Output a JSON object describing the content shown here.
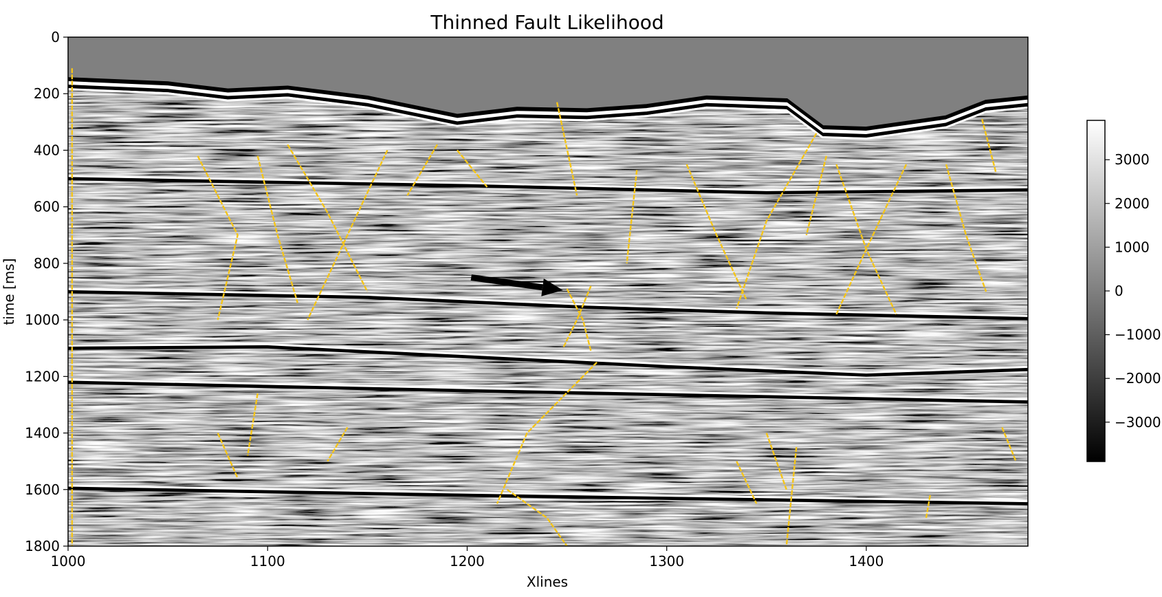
{
  "chart_data": {
    "type": "heatmap",
    "title": "Thinned Fault Likelihood",
    "xlabel": "Xlines",
    "ylabel": "time [ms]",
    "xlim": [
      1000,
      1481
    ],
    "ylim": [
      1800,
      0
    ],
    "x_ticks": [
      1000,
      1100,
      1200,
      1300,
      1400
    ],
    "x_tick_labels": [
      "1000",
      "1100",
      "1200",
      "1300",
      "1400"
    ],
    "y_ticks": [
      0,
      200,
      400,
      600,
      800,
      1000,
      1200,
      1400,
      1600,
      1800
    ],
    "y_tick_labels": [
      "0",
      "200",
      "400",
      "600",
      "800",
      "1000",
      "1200",
      "1400",
      "1600",
      "1800"
    ],
    "colormap": "gray",
    "overlay_color": "#f5c518",
    "colorbar": {
      "range": [
        -3900,
        3900
      ],
      "ticks": [
        3000,
        2000,
        1000,
        0,
        -1000,
        -2000,
        -3000
      ],
      "tick_labels": [
        "3000",
        "2000",
        "1000",
        "0",
        "−1000",
        "−2000",
        "−3000"
      ]
    },
    "seafloor_ms": [
      {
        "x": 1000,
        "y": 150
      },
      {
        "x": 1050,
        "y": 165
      },
      {
        "x": 1080,
        "y": 190
      },
      {
        "x": 1110,
        "y": 180
      },
      {
        "x": 1150,
        "y": 215
      },
      {
        "x": 1195,
        "y": 280
      },
      {
        "x": 1225,
        "y": 255
      },
      {
        "x": 1260,
        "y": 260
      },
      {
        "x": 1290,
        "y": 245
      },
      {
        "x": 1320,
        "y": 215
      },
      {
        "x": 1360,
        "y": 225
      },
      {
        "x": 1378,
        "y": 320
      },
      {
        "x": 1400,
        "y": 325
      },
      {
        "x": 1440,
        "y": 285
      },
      {
        "x": 1460,
        "y": 230
      },
      {
        "x": 1481,
        "y": 215
      }
    ],
    "horizons_ms": [
      [
        {
          "x": 1000,
          "y": 500
        },
        {
          "x": 1200,
          "y": 525
        },
        {
          "x": 1350,
          "y": 550
        },
        {
          "x": 1481,
          "y": 540
        }
      ],
      [
        {
          "x": 1000,
          "y": 900
        },
        {
          "x": 1150,
          "y": 920
        },
        {
          "x": 1260,
          "y": 955
        },
        {
          "x": 1350,
          "y": 975
        },
        {
          "x": 1481,
          "y": 995
        }
      ],
      [
        {
          "x": 1000,
          "y": 1100
        },
        {
          "x": 1100,
          "y": 1095
        },
        {
          "x": 1200,
          "y": 1130
        },
        {
          "x": 1300,
          "y": 1165
        },
        {
          "x": 1400,
          "y": 1195
        },
        {
          "x": 1481,
          "y": 1175
        }
      ],
      [
        {
          "x": 1000,
          "y": 1220
        },
        {
          "x": 1200,
          "y": 1250
        },
        {
          "x": 1481,
          "y": 1290
        }
      ],
      [
        {
          "x": 1000,
          "y": 1595
        },
        {
          "x": 1200,
          "y": 1620
        },
        {
          "x": 1481,
          "y": 1650
        }
      ]
    ],
    "faults_ms": [
      [
        {
          "x": 1002,
          "y": 110
        },
        {
          "x": 1002,
          "y": 1800
        }
      ],
      [
        {
          "x": 1065,
          "y": 420
        },
        {
          "x": 1085,
          "y": 700
        },
        {
          "x": 1075,
          "y": 1000
        }
      ],
      [
        {
          "x": 1095,
          "y": 420
        },
        {
          "x": 1105,
          "y": 700
        },
        {
          "x": 1115,
          "y": 940
        }
      ],
      [
        {
          "x": 1110,
          "y": 380
        },
        {
          "x": 1130,
          "y": 620
        },
        {
          "x": 1150,
          "y": 900
        }
      ],
      [
        {
          "x": 1160,
          "y": 400
        },
        {
          "x": 1140,
          "y": 700
        },
        {
          "x": 1120,
          "y": 1000
        }
      ],
      [
        {
          "x": 1185,
          "y": 380
        },
        {
          "x": 1170,
          "y": 560
        }
      ],
      [
        {
          "x": 1195,
          "y": 400
        },
        {
          "x": 1210,
          "y": 530
        }
      ],
      [
        {
          "x": 1245,
          "y": 230
        },
        {
          "x": 1255,
          "y": 560
        }
      ],
      [
        {
          "x": 1250,
          "y": 890
        },
        {
          "x": 1258,
          "y": 1000
        },
        {
          "x": 1262,
          "y": 1110
        }
      ],
      [
        {
          "x": 1262,
          "y": 880
        },
        {
          "x": 1255,
          "y": 1000
        },
        {
          "x": 1248,
          "y": 1100
        }
      ],
      [
        {
          "x": 1265,
          "y": 1150
        },
        {
          "x": 1230,
          "y": 1400
        },
        {
          "x": 1215,
          "y": 1650
        }
      ],
      [
        {
          "x": 1220,
          "y": 1600
        },
        {
          "x": 1240,
          "y": 1700
        },
        {
          "x": 1250,
          "y": 1800
        }
      ],
      [
        {
          "x": 1285,
          "y": 470
        },
        {
          "x": 1280,
          "y": 800
        }
      ],
      [
        {
          "x": 1310,
          "y": 450
        },
        {
          "x": 1325,
          "y": 700
        },
        {
          "x": 1340,
          "y": 930
        }
      ],
      [
        {
          "x": 1375,
          "y": 340
        },
        {
          "x": 1350,
          "y": 650
        },
        {
          "x": 1335,
          "y": 960
        }
      ],
      [
        {
          "x": 1380,
          "y": 420
        },
        {
          "x": 1370,
          "y": 700
        }
      ],
      [
        {
          "x": 1385,
          "y": 450
        },
        {
          "x": 1400,
          "y": 750
        },
        {
          "x": 1415,
          "y": 980
        }
      ],
      [
        {
          "x": 1420,
          "y": 450
        },
        {
          "x": 1400,
          "y": 750
        },
        {
          "x": 1385,
          "y": 980
        }
      ],
      [
        {
          "x": 1440,
          "y": 450
        },
        {
          "x": 1450,
          "y": 700
        },
        {
          "x": 1460,
          "y": 900
        }
      ],
      [
        {
          "x": 1458,
          "y": 290
        },
        {
          "x": 1465,
          "y": 480
        }
      ],
      [
        {
          "x": 1095,
          "y": 1260
        },
        {
          "x": 1090,
          "y": 1480
        }
      ],
      [
        {
          "x": 1075,
          "y": 1400
        },
        {
          "x": 1085,
          "y": 1560
        }
      ],
      [
        {
          "x": 1140,
          "y": 1380
        },
        {
          "x": 1130,
          "y": 1500
        }
      ],
      [
        {
          "x": 1350,
          "y": 1400
        },
        {
          "x": 1360,
          "y": 1600
        }
      ],
      [
        {
          "x": 1365,
          "y": 1450
        },
        {
          "x": 1360,
          "y": 1800
        }
      ],
      [
        {
          "x": 1335,
          "y": 1500
        },
        {
          "x": 1345,
          "y": 1650
        }
      ],
      [
        {
          "x": 1468,
          "y": 1380
        },
        {
          "x": 1475,
          "y": 1500
        }
      ],
      [
        {
          "x": 1432,
          "y": 1620
        },
        {
          "x": 1430,
          "y": 1700
        }
      ]
    ],
    "arrow_ms": {
      "from": {
        "x": 1202,
        "y": 850
      },
      "to": {
        "x": 1248,
        "y": 895
      }
    }
  }
}
